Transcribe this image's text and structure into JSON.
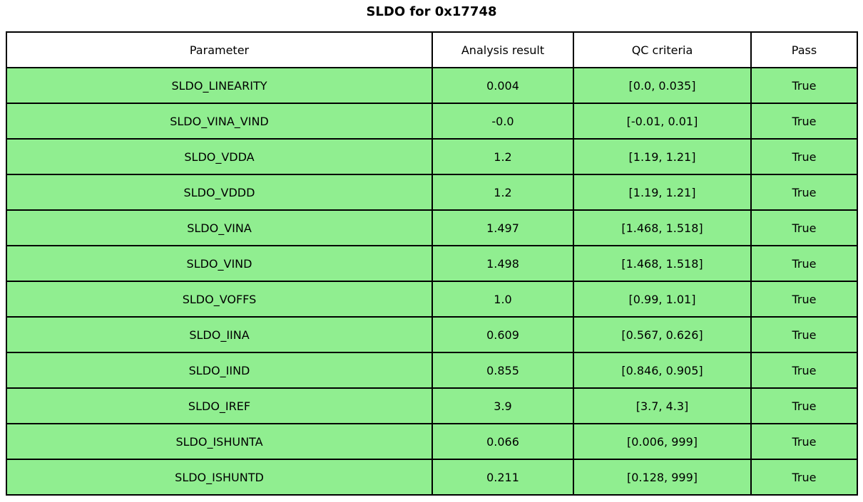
{
  "title": "SLDO for 0x17748",
  "colors": {
    "pass_row_bg": "#90ee90",
    "header_bg": "#ffffff",
    "border": "#000000",
    "text": "#000000",
    "page_bg": "#ffffff"
  },
  "chart_data": {
    "type": "table",
    "title": "SLDO for 0x17748",
    "columns": [
      "Parameter",
      "Analysis result",
      "QC criteria",
      "Pass"
    ],
    "rows": [
      [
        "SLDO_LINEARITY",
        "0.004",
        "[0.0, 0.035]",
        "True"
      ],
      [
        "SLDO_VINA_VIND",
        "-0.0",
        "[-0.01, 0.01]",
        "True"
      ],
      [
        "SLDO_VDDA",
        "1.2",
        "[1.19, 1.21]",
        "True"
      ],
      [
        "SLDO_VDDD",
        "1.2",
        "[1.19, 1.21]",
        "True"
      ],
      [
        "SLDO_VINA",
        "1.497",
        "[1.468, 1.518]",
        "True"
      ],
      [
        "SLDO_VIND",
        "1.498",
        "[1.468, 1.518]",
        "True"
      ],
      [
        "SLDO_VOFFS",
        "1.0",
        "[0.99, 1.01]",
        "True"
      ],
      [
        "SLDO_IINA",
        "0.609",
        "[0.567, 0.626]",
        "True"
      ],
      [
        "SLDO_IIND",
        "0.855",
        "[0.846, 0.905]",
        "True"
      ],
      [
        "SLDO_IREF",
        "3.9",
        "[3.7, 4.3]",
        "True"
      ],
      [
        "SLDO_ISHUNTA",
        "0.066",
        "[0.006, 999]",
        "True"
      ],
      [
        "SLDO_ISHUNTD",
        "0.211",
        "[0.128, 999]",
        "True"
      ]
    ]
  }
}
